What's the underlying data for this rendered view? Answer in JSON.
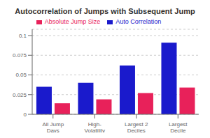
{
  "chart_data": {
    "type": "bar",
    "title": "Autocorrelation of Jumps with Subsequent Jump",
    "categories": [
      "All Jump Days",
      "High-Volatility",
      "Largest 2 Deciles",
      "Largest Decile"
    ],
    "series": [
      {
        "name": "Auto Correlation",
        "color": "#1a1acc",
        "values": [
          0.035,
          0.04,
          0.062,
          0.091
        ]
      },
      {
        "name": "Absolute Jump Size",
        "color": "#e8215a",
        "values": [
          0.014,
          0.019,
          0.027,
          0.034
        ]
      }
    ],
    "ylim": [
      0,
      0.108
    ],
    "yticks": [
      0,
      0.025,
      0.05,
      0.075,
      0.1
    ],
    "grid": true,
    "legend": "top"
  }
}
